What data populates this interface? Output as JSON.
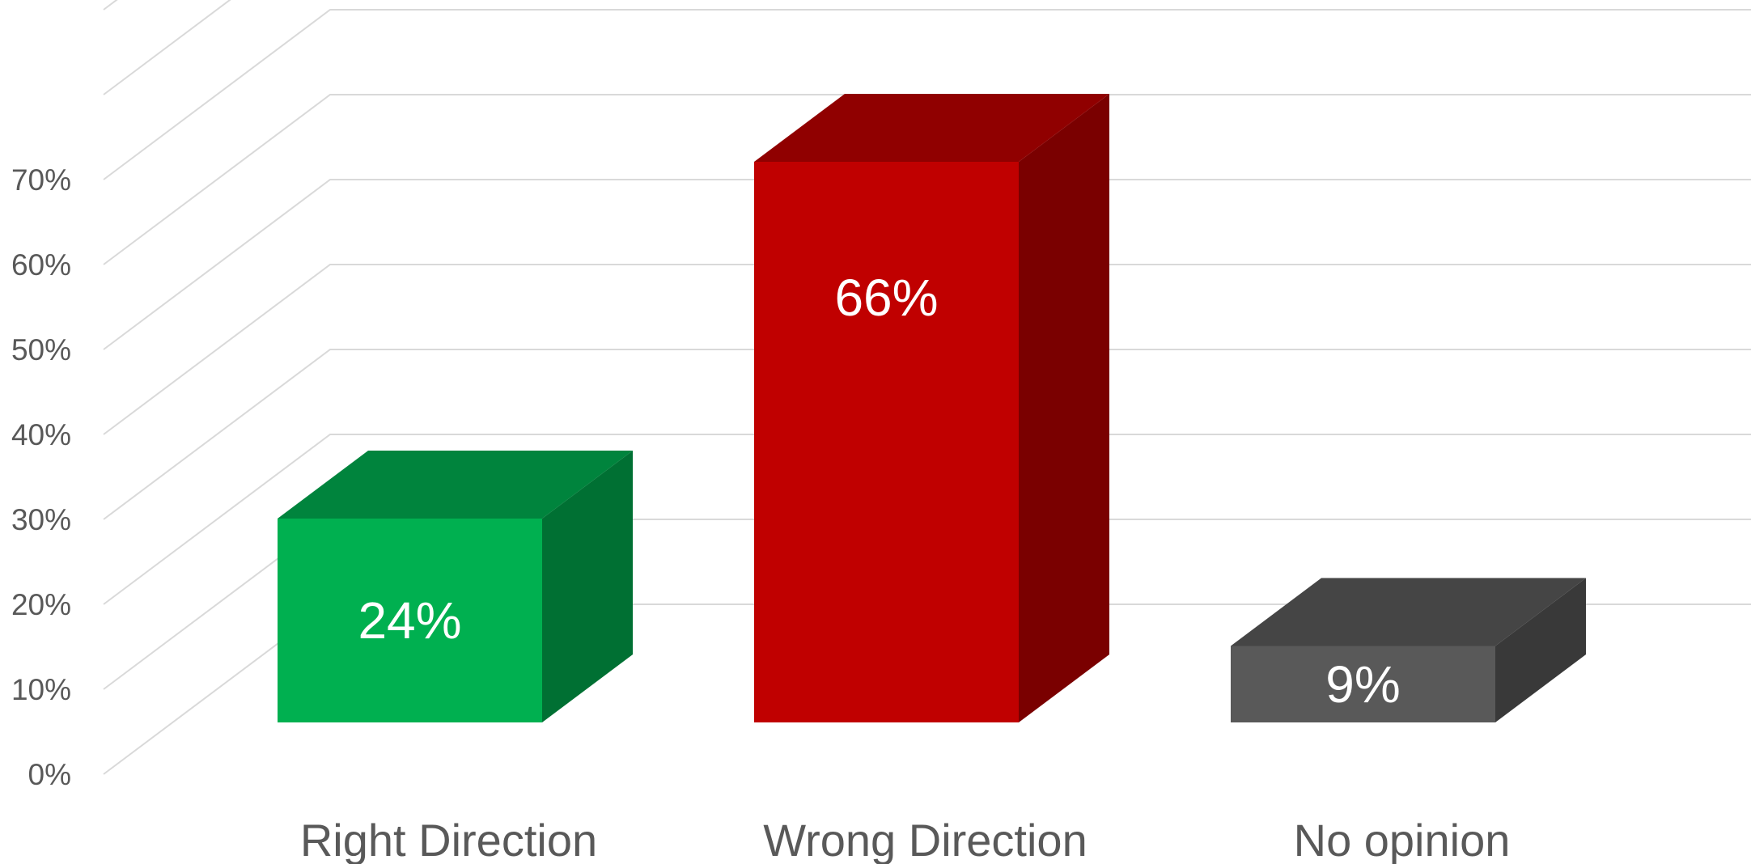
{
  "chart_data": {
    "type": "bar",
    "style": "3d-column",
    "categories": [
      "Right Direction",
      "Wrong Direction",
      "No opinion"
    ],
    "values": [
      24,
      66,
      9
    ],
    "data_labels": [
      "24%",
      "66%",
      "9%"
    ],
    "colors": {
      "Right Direction": {
        "front": "#00b050",
        "top": "#00843d",
        "side": "#007033"
      },
      "Wrong Direction": {
        "front": "#c00000",
        "top": "#900000",
        "side": "#7a0000"
      },
      "No opinion": {
        "front": "#595959",
        "top": "#454545",
        "side": "#393939"
      }
    },
    "y_ticks": [
      "0%",
      "10%",
      "20%",
      "30%",
      "40%",
      "50%",
      "60%",
      "70%"
    ],
    "ylim": [
      0,
      90
    ],
    "grid": true,
    "legend": "none"
  }
}
